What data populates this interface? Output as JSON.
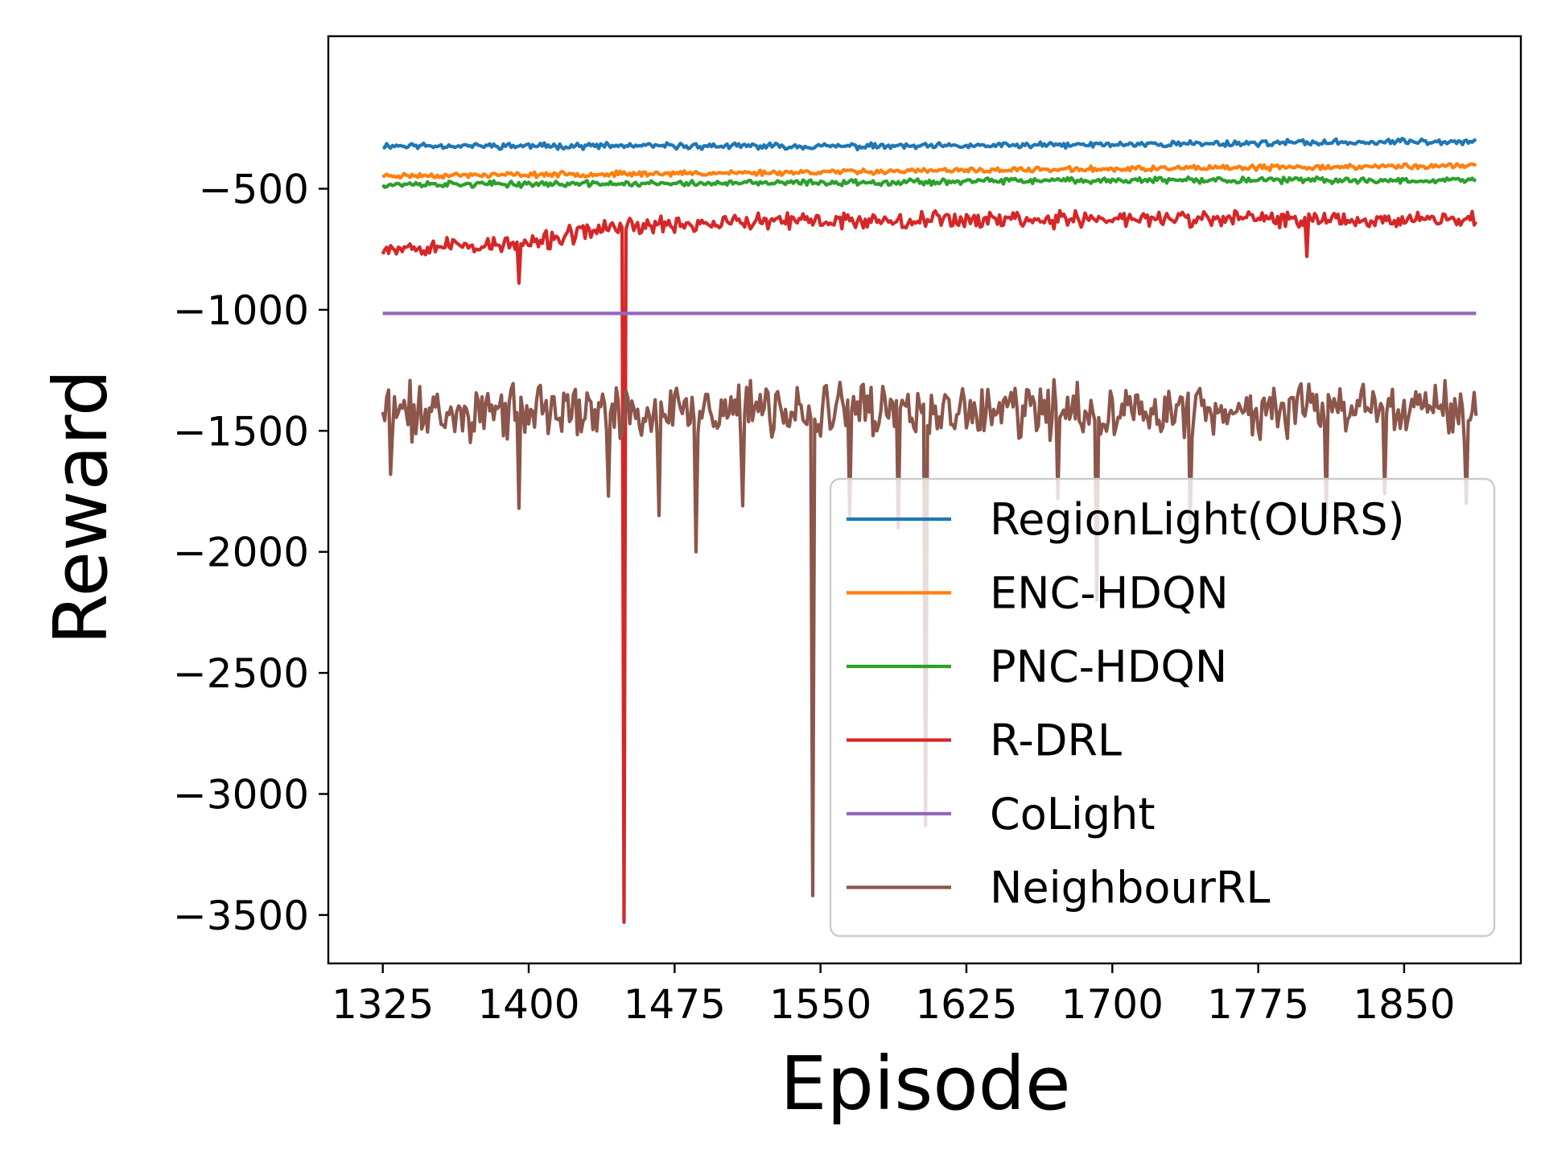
{
  "chart_data": {
    "type": "line",
    "title": "",
    "xlabel": "Episode",
    "ylabel": "Reward",
    "xlim": [
      1297,
      1910
    ],
    "ylim": [
      -3700,
      130
    ],
    "xticks": [
      1325,
      1400,
      1475,
      1550,
      1625,
      1700,
      1775,
      1850
    ],
    "yticks": [
      -500,
      -1000,
      -1500,
      -2000,
      -2500,
      -3000,
      -3500
    ],
    "ytick_labels": [
      "−500",
      "−1000",
      "−1500",
      "−2000",
      "−2500",
      "−3000",
      "−3500"
    ],
    "grid": false,
    "legend_position": "lower-right",
    "x_range": [
      1325,
      1887
    ],
    "series": [
      {
        "name": "RegionLight(OURS)",
        "color": "#1f77b4",
        "base": [
          [
            1325,
            -322
          ],
          [
            1600,
            -325
          ],
          [
            1887,
            -303
          ]
        ],
        "noise": 15,
        "seed": 11,
        "spikes": []
      },
      {
        "name": "ENC-HDQN",
        "color": "#ff7f0e",
        "base": [
          [
            1325,
            -447
          ],
          [
            1500,
            -435
          ],
          [
            1700,
            -418
          ],
          [
            1887,
            -405
          ]
        ],
        "noise": 13,
        "seed": 23,
        "spikes": []
      },
      {
        "name": "PNC-HDQN",
        "color": "#2ca02c",
        "base": [
          [
            1325,
            -482
          ],
          [
            1500,
            -478
          ],
          [
            1700,
            -465
          ],
          [
            1887,
            -465
          ]
        ],
        "noise": 15,
        "seed": 37,
        "spikes": []
      },
      {
        "name": "R-DRL",
        "color": "#d62728",
        "base": [
          [
            1325,
            -740
          ],
          [
            1400,
            -730
          ],
          [
            1440,
            -660
          ],
          [
            1480,
            -645
          ],
          [
            1600,
            -625
          ],
          [
            1887,
            -625
          ]
        ],
        "noise": 45,
        "seed": 53,
        "spikes": [
          [
            1395,
            -890
          ],
          [
            1449,
            -3530
          ],
          [
            1800,
            -780
          ]
        ]
      },
      {
        "name": "CoLight",
        "color": "#9467bd",
        "base": [
          [
            1325,
            -1015
          ],
          [
            1887,
            -1015
          ]
        ],
        "noise": 0,
        "seed": 1,
        "spikes": []
      },
      {
        "name": "NeighbourRL",
        "color": "#8c564b",
        "base": [
          [
            1325,
            -1420
          ],
          [
            1887,
            -1420
          ]
        ],
        "noise": 140,
        "seed": 71,
        "spikes": [
          [
            1329,
            -1680
          ],
          [
            1395,
            -1820
          ],
          [
            1441,
            -1770
          ],
          [
            1467,
            -1850
          ],
          [
            1486,
            -2000
          ],
          [
            1510,
            -1810
          ],
          [
            1546,
            -3420
          ],
          [
            1565,
            -1850
          ],
          [
            1590,
            -1900
          ],
          [
            1604,
            -3130
          ],
          [
            1672,
            -1780
          ],
          [
            1692,
            -2200
          ],
          [
            1740,
            -1880
          ],
          [
            1810,
            -1840
          ],
          [
            1840,
            -1760
          ],
          [
            1882,
            -1800
          ]
        ]
      }
    ]
  }
}
